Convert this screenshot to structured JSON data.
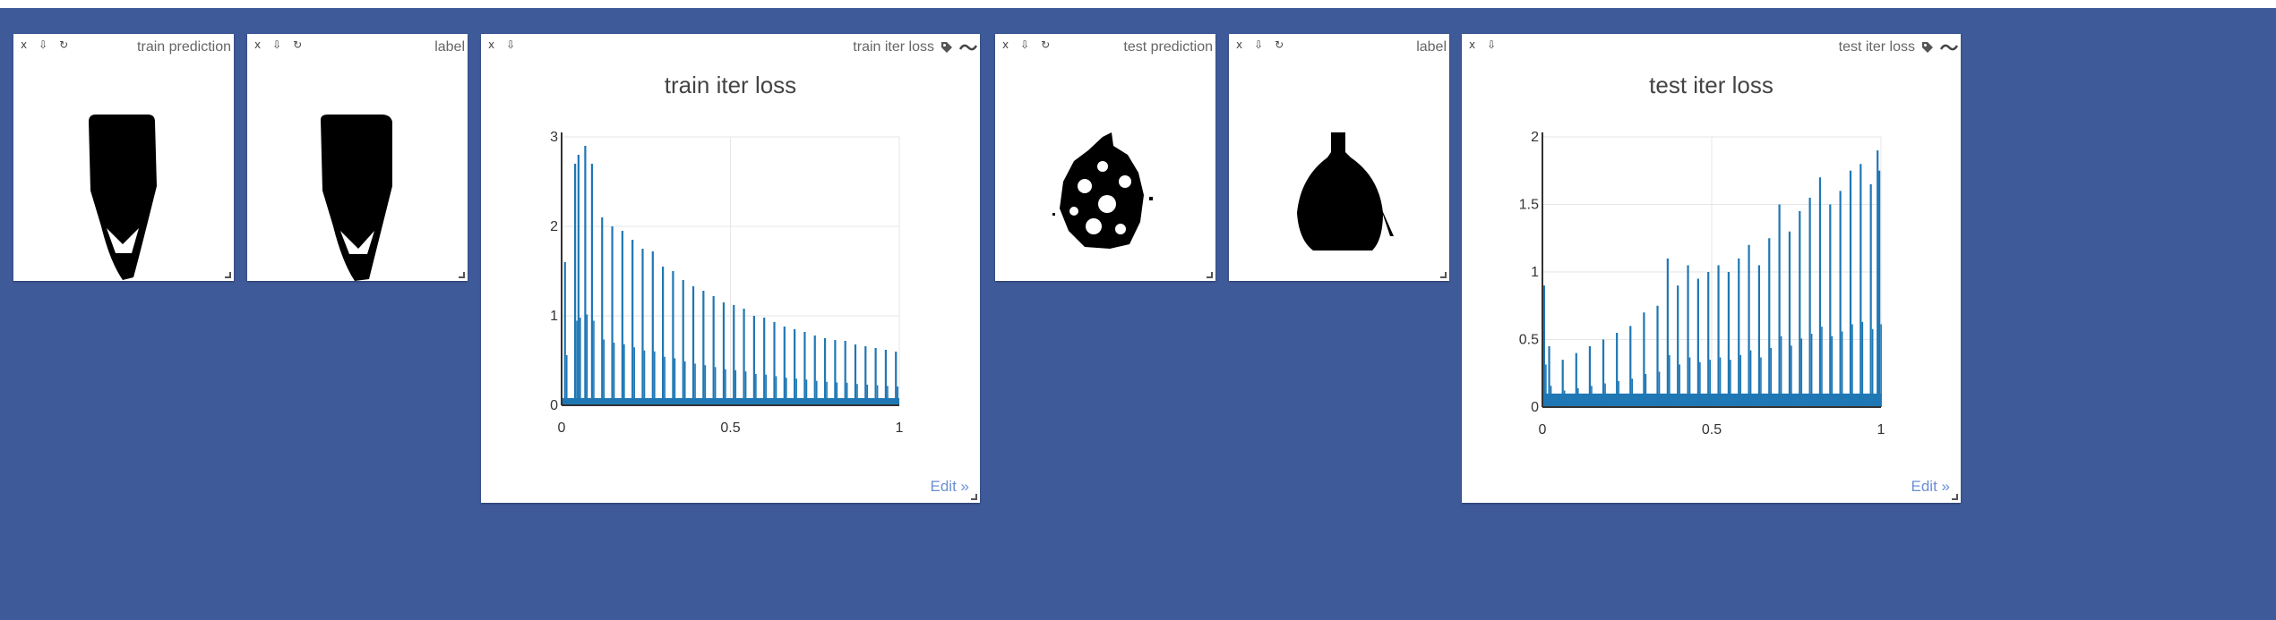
{
  "panes": [
    {
      "type": "image",
      "title": "train prediction"
    },
    {
      "type": "image",
      "title": "label"
    },
    {
      "type": "chart",
      "title": "train iter loss",
      "chart_title": "train iter loss",
      "edit_label": "Edit »"
    },
    {
      "type": "image",
      "title": "test prediction"
    },
    {
      "type": "image",
      "title": "label"
    },
    {
      "type": "chart",
      "title": "test iter loss",
      "chart_title": "test iter loss",
      "edit_label": "Edit »"
    }
  ],
  "controls": {
    "close": "x",
    "download": "⇩",
    "reset": "↻"
  },
  "colors": {
    "background": "#3f5a99",
    "line": "#1f77b4",
    "link": "#6a8fd4"
  },
  "icons": [
    "close-icon",
    "download-icon",
    "reset-icon",
    "tag-icon",
    "smooth-icon",
    "resize-handle"
  ],
  "chart_data": [
    {
      "type": "line",
      "title": "train iter loss",
      "xlabel": "",
      "ylabel": "",
      "xlim": [
        0,
        1
      ],
      "ylim": [
        0,
        3
      ],
      "x_ticks": [
        "0",
        "0.5",
        "1"
      ],
      "y_ticks": [
        "0",
        "1",
        "2",
        "3"
      ],
      "grid": true,
      "series": [
        {
          "baseline": 0.08,
          "spikes_x": [
            0.01,
            0.04,
            0.05,
            0.07,
            0.09,
            0.12,
            0.15,
            0.18,
            0.21,
            0.24,
            0.27,
            0.3,
            0.33,
            0.36,
            0.39,
            0.42,
            0.45,
            0.48,
            0.51,
            0.54,
            0.57,
            0.6,
            0.63,
            0.66,
            0.69,
            0.72,
            0.75,
            0.78,
            0.81,
            0.84,
            0.87,
            0.9,
            0.93,
            0.96,
            0.99
          ],
          "spikes_y": [
            1.6,
            2.7,
            2.8,
            2.9,
            2.7,
            2.1,
            2.0,
            1.95,
            1.85,
            1.75,
            1.72,
            1.55,
            1.5,
            1.4,
            1.33,
            1.28,
            1.22,
            1.15,
            1.12,
            1.08,
            1.0,
            0.98,
            0.93,
            0.88,
            0.85,
            0.82,
            0.78,
            0.75,
            0.73,
            0.72,
            0.68,
            0.66,
            0.64,
            0.62,
            0.6
          ]
        }
      ]
    },
    {
      "type": "line",
      "title": "test iter loss",
      "xlabel": "",
      "ylabel": "",
      "xlim": [
        0,
        1
      ],
      "ylim": [
        0,
        2
      ],
      "x_ticks": [
        "0",
        "0.5",
        "1"
      ],
      "y_ticks": [
        "0",
        "0.5",
        "1",
        "1.5",
        "2"
      ],
      "grid": true,
      "series": [
        {
          "baseline": 0.1,
          "spikes_x": [
            0.005,
            0.02,
            0.06,
            0.1,
            0.14,
            0.18,
            0.22,
            0.26,
            0.3,
            0.34,
            0.37,
            0.4,
            0.43,
            0.46,
            0.49,
            0.52,
            0.55,
            0.58,
            0.61,
            0.64,
            0.67,
            0.7,
            0.73,
            0.76,
            0.79,
            0.82,
            0.85,
            0.88,
            0.91,
            0.94,
            0.97,
            0.99,
            0.995
          ],
          "spikes_y": [
            0.9,
            0.45,
            0.35,
            0.4,
            0.45,
            0.5,
            0.55,
            0.6,
            0.7,
            0.75,
            1.1,
            0.9,
            1.05,
            0.95,
            1.0,
            1.05,
            1.0,
            1.1,
            1.2,
            1.05,
            1.25,
            1.5,
            1.3,
            1.45,
            1.55,
            1.7,
            1.5,
            1.6,
            1.75,
            1.8,
            1.65,
            1.9,
            1.75
          ]
        }
      ]
    }
  ]
}
